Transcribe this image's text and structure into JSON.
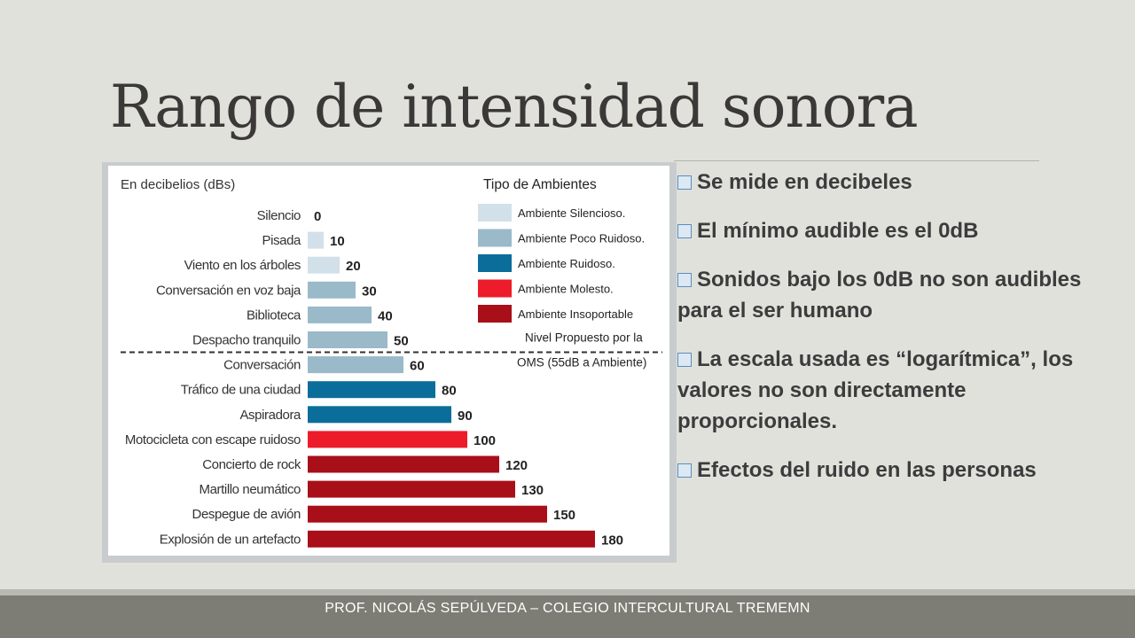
{
  "slide": {
    "title": "Rango de intensidad sonora",
    "bullets": [
      "Se mide en decibeles",
      "El mínimo audible es el 0dB",
      "Sonidos bajo los 0dB no son audibles para el ser humano",
      "La escala usada es “logarítmica”, los valores no son directamente proporcionales.",
      "Efectos del ruido en las personas"
    ],
    "footer": "PROF. NICOLÁS SEPÚLVEDA – COLEGIO INTERCULTURAL TREMEMN"
  },
  "colors": {
    "silencioso": "#d2e0ea",
    "poco_ruidoso": "#9ab9c9",
    "ruidoso": "#0b6e9a",
    "molesto": "#ec1c2a",
    "insoportable": "#a90f18"
  },
  "chart_data": {
    "type": "bar",
    "orientation": "horizontal",
    "unit_label": "En decibelios (dBs)",
    "categories": [
      "Silencio",
      "Pisada",
      "Viento en los árboles",
      "Conversación en voz baja",
      "Biblioteca",
      "Despacho tranquilo",
      "Conversación",
      "Tráfico de una ciudad",
      "Aspiradora",
      "Motocicleta con escape ruidoso",
      "Concierto de rock",
      "Martillo neumático",
      "Despegue de avión",
      "Explosión de un artefacto"
    ],
    "values": [
      0,
      10,
      20,
      30,
      40,
      50,
      60,
      80,
      90,
      100,
      120,
      130,
      150,
      180
    ],
    "bar_class": [
      "silencioso",
      "silencioso",
      "silencioso",
      "poco_ruidoso",
      "poco_ruidoso",
      "poco_ruidoso",
      "poco_ruidoso",
      "ruidoso",
      "ruidoso",
      "molesto",
      "insoportable",
      "insoportable",
      "insoportable",
      "insoportable"
    ],
    "legend_title": "Tipo de Ambientes",
    "legend": [
      {
        "key": "silencioso",
        "label": "Ambiente Silencioso."
      },
      {
        "key": "poco_ruidoso",
        "label": "Ambiente Poco Ruidoso."
      },
      {
        "key": "ruidoso",
        "label": "Ambiente Ruidoso."
      },
      {
        "key": "molesto",
        "label": "Ambiente Molesto."
      },
      {
        "key": "insoportable",
        "label": "Ambiente Insoportable"
      }
    ],
    "legend_position": "top-right",
    "reference": {
      "value": 55,
      "label_lines": [
        "Nivel Propuesto por la",
        "OMS (55dB a Ambiente)"
      ]
    },
    "xlim": [
      0,
      180
    ],
    "grid": false
  }
}
